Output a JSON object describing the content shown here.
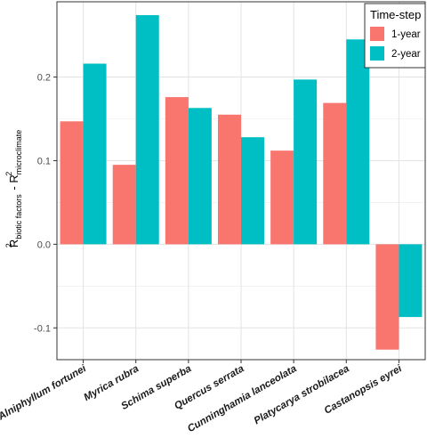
{
  "chart_data": {
    "type": "bar",
    "categories": [
      "Alniphyllum fortunei",
      "Myrica rubra",
      "Schima superba",
      "Quercus serrata",
      "Cunninghamia lanceolata",
      "Platycarya strobilacea",
      "Castanopsis eyrei"
    ],
    "series": [
      {
        "name": "1-year",
        "color": "#F8766D",
        "values": [
          0.147,
          0.095,
          0.176,
          0.155,
          0.112,
          0.169,
          -0.126
        ]
      },
      {
        "name": "2-year",
        "color": "#00BFC4",
        "values": [
          0.216,
          0.274,
          0.163,
          0.128,
          0.197,
          0.245,
          -0.087
        ]
      }
    ],
    "ylabel": {
      "main_1": "R",
      "sup_1": "2",
      "sub_1": "biotic factors",
      "sep": " - ",
      "main_2": "R",
      "sup_2": "2",
      "sub_2": "microclimate"
    },
    "yticks": [
      -0.1,
      0.0,
      0.1,
      0.2
    ],
    "ytick_labels": [
      "-0.1",
      "0.0",
      "0.1",
      "0.2"
    ],
    "ylim": [
      -0.138,
      0.29
    ],
    "legend": {
      "title": "Time-step",
      "position": "top-right"
    },
    "grid": true
  }
}
